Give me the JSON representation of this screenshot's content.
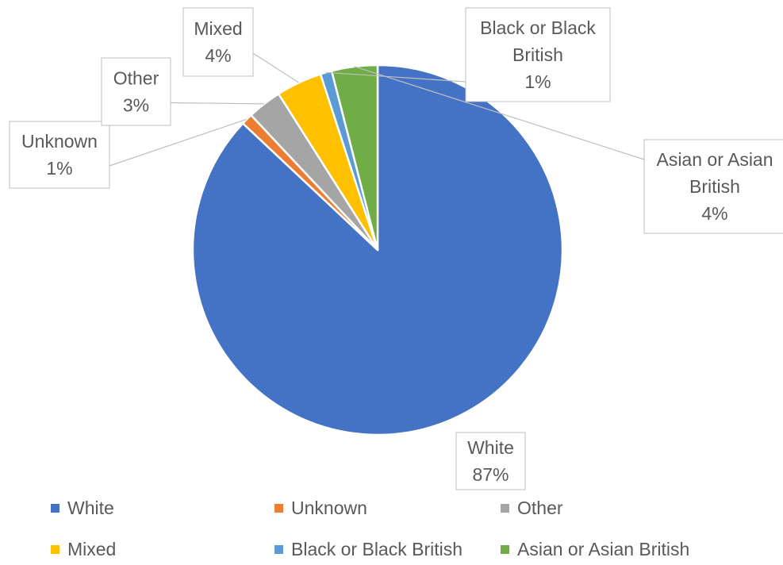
{
  "chart_data": {
    "type": "pie",
    "title": "",
    "slices": [
      {
        "name": "White",
        "value": 87,
        "label_value": "87%",
        "color": "#4472C4"
      },
      {
        "name": "Unknown",
        "value": 1,
        "label_value": "1%",
        "color": "#ED7D31"
      },
      {
        "name": "Other",
        "value": 3,
        "label_value": "3%",
        "color": "#A5A5A5"
      },
      {
        "name": "Mixed",
        "value": 4,
        "label_value": "4%",
        "color": "#FFC000"
      },
      {
        "name": "Black or Black British",
        "value": 1,
        "label_value": "1%",
        "color": "#5B9BD5"
      },
      {
        "name": "Asian or Asian British",
        "value": 4,
        "label_value": "4%",
        "color": "#70AD47"
      }
    ],
    "data_labels": [
      {
        "lines": [
          "White",
          "87%"
        ]
      },
      {
        "lines": [
          "Unknown",
          "1%"
        ]
      },
      {
        "lines": [
          "Other",
          "3%"
        ]
      },
      {
        "lines": [
          "Mixed",
          "4%"
        ]
      },
      {
        "lines": [
          "Black or Black",
          "British",
          "1%"
        ]
      },
      {
        "lines": [
          "Asian or Asian",
          "British",
          "4%"
        ]
      }
    ],
    "legend": {
      "position": "bottom",
      "items": [
        "White",
        "Unknown",
        "Other",
        "Mixed",
        "Black or Black British",
        "Asian or Asian British"
      ]
    }
  }
}
